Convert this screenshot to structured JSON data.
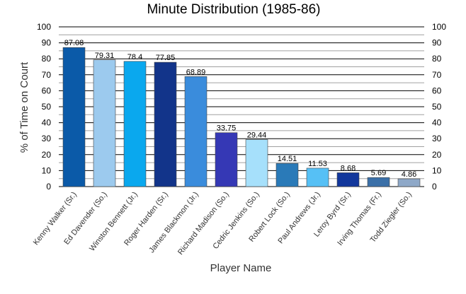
{
  "chart_data": {
    "type": "bar",
    "title": "Minute Distribution (1985-86)",
    "xlabel": "Player Name",
    "ylabel": "% of Time on Court",
    "ylim": [
      0,
      100
    ],
    "yticks": [
      0,
      10,
      20,
      30,
      40,
      50,
      60,
      70,
      80,
      90,
      100
    ],
    "grid": true,
    "categories": [
      "Kenny Walker (Sr.)",
      "Ed Davender (So.)",
      "Winston Bennett (Jr.)",
      "Roger Harden (Sr.)",
      "James Blackmon (Jr.)",
      "Richard Madison (So.)",
      "Cedric Jenkins (So.)",
      "Robert Lock (So.)",
      "Paul Andrews (Jr.)",
      "Leroy Byrd (Sr.)",
      "Irving Thomas (Fr.)",
      "Todd Ziegler (So.)"
    ],
    "values": [
      87.08,
      79.31,
      78.4,
      77.85,
      68.89,
      33.75,
      29.44,
      14.51,
      11.53,
      8.68,
      5.69,
      4.86
    ],
    "value_labels": [
      "87.08",
      "79.31",
      "78.4",
      "77.85",
      "68.89",
      "33.75",
      "29.44",
      "14.51",
      "11.53",
      "8.68",
      "5.69",
      "4.86"
    ],
    "colors": [
      "#0b5aa8",
      "#9ccaee",
      "#0aa8ee",
      "#12348a",
      "#3a8cdc",
      "#3538b5",
      "#a6e0fb",
      "#2a7ab8",
      "#56c0f5",
      "#12379c",
      "#3b70a8",
      "#8ea8c8"
    ]
  }
}
